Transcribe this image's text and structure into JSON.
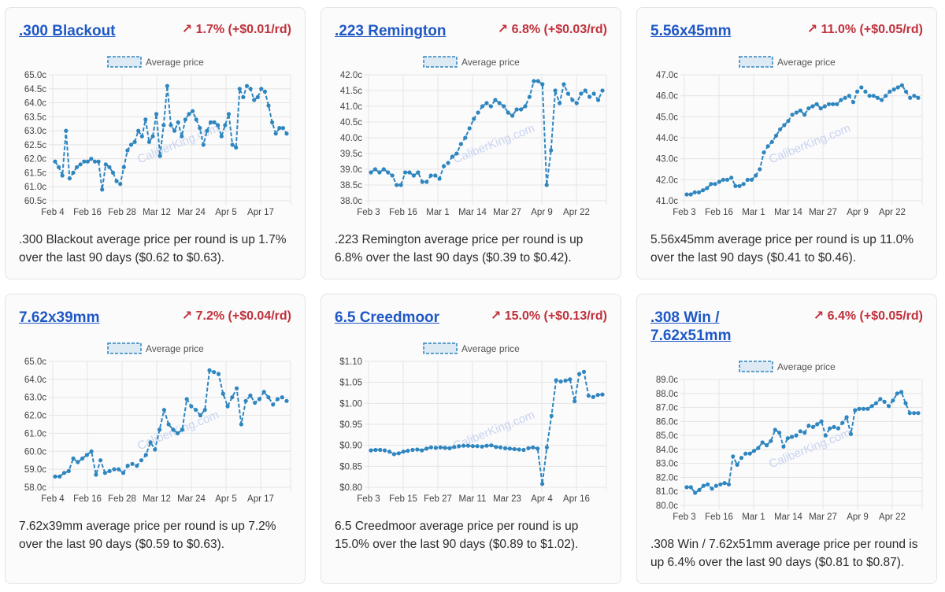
{
  "colors": {
    "line": "#2f86bf",
    "grid": "#e4e4e4",
    "title": "#1f58c4",
    "up": "#c0303a"
  },
  "legend_label": "Average price",
  "watermark": "CaliberKing.com",
  "cards": [
    {
      "title": ".300 Blackout",
      "change": "↗ 1.7% (+$0.01/rd)",
      "description": ".300 Blackout average price per round is up 1.7% over the last 90 days ($0.62 to $0.63).",
      "chart_data": {
        "type": "line",
        "series": [
          {
            "name": "Average price",
            "values": [
              61.9,
              61.7,
              61.4,
              63.0,
              61.3,
              61.5,
              61.7,
              61.8,
              61.9,
              61.9,
              62.0,
              61.9,
              61.9,
              60.9,
              61.8,
              61.7,
              61.5,
              61.2,
              61.1,
              61.7,
              62.3,
              62.5,
              62.6,
              63.0,
              62.8,
              63.4,
              62.6,
              62.8,
              63.6,
              62.1,
              63.2,
              64.6,
              63.2,
              63.0,
              63.3,
              62.8,
              63.4,
              63.6,
              63.7,
              63.4,
              63.1,
              62.5,
              63.0,
              63.3,
              63.3,
              63.2,
              62.8,
              63.2,
              63.6,
              62.5,
              62.4,
              64.5,
              64.2,
              64.6,
              64.5,
              64.1,
              64.2,
              64.5,
              64.4,
              63.9,
              63.3,
              62.9,
              63.1,
              63.1,
              62.9
            ]
          }
        ],
        "x_ticks": [
          "Feb 4",
          "Feb 16",
          "Feb 28",
          "Mar 12",
          "Mar 24",
          "Apr 5",
          "Apr 17"
        ],
        "y_ticks": [
          "60.5c",
          "61.0c",
          "61.5c",
          "62.0c",
          "62.5c",
          "63.0c",
          "63.5c",
          "64.0c",
          "64.5c",
          "65.0c"
        ],
        "ylim": [
          60.5,
          65.0
        ]
      }
    },
    {
      "title": ".223 Remington",
      "change": "↗ 6.8% (+$0.03/rd)",
      "description": ".223 Remington average price per round is up 6.8% over the last 90 days ($0.39 to $0.42).",
      "chart_data": {
        "type": "line",
        "series": [
          {
            "name": "Average price",
            "values": [
              38.9,
              39.0,
              38.9,
              39.0,
              38.9,
              38.8,
              38.5,
              38.5,
              38.9,
              38.9,
              38.8,
              38.9,
              38.6,
              38.6,
              38.8,
              38.8,
              38.7,
              39.1,
              39.2,
              39.4,
              39.5,
              39.8,
              40.0,
              40.3,
              40.6,
              40.8,
              41.0,
              41.1,
              41.0,
              41.2,
              41.1,
              41.0,
              40.8,
              40.7,
              40.9,
              40.9,
              41.0,
              41.3,
              41.8,
              41.8,
              41.7,
              38.5,
              39.6,
              41.5,
              41.1,
              41.7,
              41.4,
              41.2,
              41.1,
              41.4,
              41.5,
              41.3,
              41.4,
              41.2,
              41.5
            ]
          }
        ],
        "x_ticks": [
          "Feb 3",
          "Feb 16",
          "Mar 1",
          "Mar 14",
          "Mar 27",
          "Apr 9",
          "Apr 22"
        ],
        "y_ticks": [
          "38.0c",
          "38.5c",
          "39.0c",
          "39.5c",
          "40.0c",
          "40.5c",
          "41.0c",
          "41.5c",
          "42.0c"
        ],
        "ylim": [
          38.0,
          42.0
        ]
      }
    },
    {
      "title": "5.56x45mm",
      "change": "↗ 11.0% (+$0.05/rd)",
      "description": "5.56x45mm average price per round is up 11.0% over the last 90 days ($0.41 to $0.46).",
      "chart_data": {
        "type": "line",
        "series": [
          {
            "name": "Average price",
            "values": [
              41.3,
              41.3,
              41.4,
              41.4,
              41.5,
              41.6,
              41.8,
              41.8,
              41.9,
              42.0,
              42.0,
              42.1,
              41.7,
              41.7,
              41.8,
              42.0,
              42.0,
              42.2,
              42.5,
              43.3,
              43.6,
              43.8,
              44.1,
              44.4,
              44.6,
              44.8,
              45.1,
              45.2,
              45.3,
              45.1,
              45.4,
              45.5,
              45.6,
              45.4,
              45.5,
              45.6,
              45.6,
              45.6,
              45.8,
              45.9,
              46.0,
              45.7,
              46.2,
              46.4,
              46.2,
              46.0,
              46.0,
              45.9,
              45.8,
              46.0,
              46.2,
              46.3,
              46.4,
              46.5,
              46.2,
              45.9,
              46.0,
              45.9
            ]
          }
        ],
        "x_ticks": [
          "Feb 3",
          "Feb 16",
          "Mar 1",
          "Mar 14",
          "Mar 27",
          "Apr 9",
          "Apr 22"
        ],
        "y_ticks": [
          "41.0c",
          "42.0c",
          "43.0c",
          "44.0c",
          "45.0c",
          "46.0c",
          "47.0c"
        ],
        "ylim": [
          41.0,
          47.0
        ]
      }
    },
    {
      "title": "7.62x39mm",
      "change": "↗ 7.2% (+$0.04/rd)",
      "description": "7.62x39mm average price per round is up 7.2% over the last 90 days ($0.59 to $0.63).",
      "chart_data": {
        "type": "line",
        "series": [
          {
            "name": "Average price",
            "values": [
              58.6,
              58.6,
              58.8,
              58.9,
              59.6,
              59.4,
              59.6,
              59.8,
              60.0,
              58.7,
              59.5,
              58.8,
              58.9,
              59.0,
              59.0,
              58.8,
              59.2,
              59.3,
              59.2,
              59.5,
              59.8,
              60.5,
              60.1,
              61.2,
              62.3,
              61.5,
              61.2,
              61.0,
              61.2,
              62.9,
              62.5,
              62.3,
              62.0,
              62.3,
              64.5,
              64.4,
              64.3,
              63.2,
              62.5,
              63.0,
              63.5,
              61.5,
              62.8,
              63.1,
              62.7,
              62.9,
              63.3,
              63.0,
              62.6,
              62.9,
              63.0,
              62.8
            ]
          }
        ],
        "x_ticks": [
          "Feb 4",
          "Feb 16",
          "Feb 28",
          "Mar 12",
          "Mar 24",
          "Apr 5",
          "Apr 17"
        ],
        "y_ticks": [
          "58.0c",
          "59.0c",
          "60.0c",
          "61.0c",
          "62.0c",
          "63.0c",
          "64.0c",
          "65.0c"
        ],
        "ylim": [
          58.0,
          65.0
        ]
      }
    },
    {
      "title": "6.5 Creedmoor",
      "change": "↗ 15.0% (+$0.13/rd)",
      "description": "6.5 Creedmoor average price per round is up 15.0% over the last 90 days ($0.89 to $1.02).",
      "chart_data": {
        "type": "line",
        "series": [
          {
            "name": "Average price",
            "values": [
              0.888,
              0.889,
              0.889,
              0.888,
              0.885,
              0.879,
              0.881,
              0.885,
              0.887,
              0.889,
              0.89,
              0.888,
              0.892,
              0.895,
              0.894,
              0.895,
              0.894,
              0.893,
              0.896,
              0.898,
              0.899,
              0.899,
              0.898,
              0.898,
              0.897,
              0.899,
              0.9,
              0.896,
              0.895,
              0.893,
              0.892,
              0.891,
              0.89,
              0.889,
              0.893,
              0.895,
              0.892,
              0.808,
              0.895,
              0.97,
              1.055,
              1.052,
              1.054,
              1.057,
              1.005,
              1.07,
              1.075,
              1.018,
              1.015,
              1.02,
              1.021
            ]
          }
        ],
        "x_ticks": [
          "Feb 3",
          "Feb 15",
          "Feb 27",
          "Mar 11",
          "Mar 23",
          "Apr 4",
          "Apr 16"
        ],
        "y_ticks": [
          "$0.80",
          "$0.85",
          "$0.90",
          "$0.95",
          "$1.00",
          "$1.05",
          "$1.10"
        ],
        "ylim": [
          0.8,
          1.1
        ]
      }
    },
    {
      "title": ".308 Win / 7.62x51mm",
      "change": "↗ 6.4% (+$0.05/rd)",
      "description": ".308 Win / 7.62x51mm average price per round is up 6.4% over the last 90 days ($0.81 to $0.87).",
      "chart_data": {
        "type": "line",
        "series": [
          {
            "name": "Average price",
            "values": [
              81.3,
              81.3,
              80.9,
              81.1,
              81.4,
              81.5,
              81.2,
              81.4,
              81.5,
              81.6,
              81.5,
              83.5,
              82.9,
              83.4,
              83.7,
              83.7,
              83.9,
              84.1,
              84.5,
              84.3,
              84.6,
              85.4,
              85.2,
              84.2,
              84.8,
              84.9,
              85.0,
              85.3,
              85.2,
              85.7,
              85.6,
              85.8,
              86.0,
              85.0,
              85.5,
              85.6,
              85.5,
              85.9,
              86.3,
              85.1,
              86.8,
              86.9,
              86.9,
              86.9,
              87.1,
              87.3,
              87.6,
              87.4,
              87.1,
              87.5,
              88.0,
              88.1,
              87.3,
              86.6,
              86.6,
              86.6
            ]
          }
        ],
        "x_ticks": [
          "Feb 3",
          "Feb 16",
          "Mar 1",
          "Mar 14",
          "Mar 27",
          "Apr 9",
          "Apr 22"
        ],
        "y_ticks": [
          "80.0c",
          "81.0c",
          "82.0c",
          "83.0c",
          "84.0c",
          "85.0c",
          "86.0c",
          "87.0c",
          "88.0c",
          "89.0c"
        ],
        "ylim": [
          80.0,
          89.0
        ]
      }
    }
  ]
}
